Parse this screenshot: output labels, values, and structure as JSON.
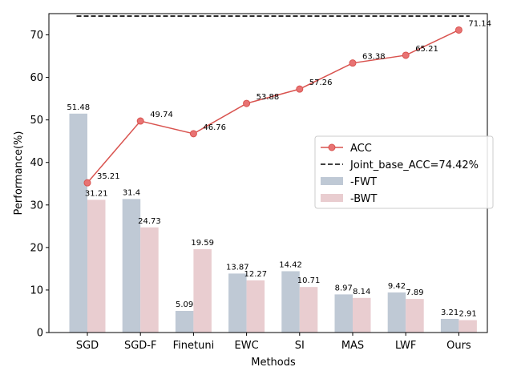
{
  "chart_data": {
    "type": "bar",
    "categories": [
      "SGD",
      "SGD-F",
      "Finetuni",
      "EWC",
      "SI",
      "MAS",
      "LWF",
      "Ours"
    ],
    "xlabel": "Methods",
    "ylabel": "Performance(%)",
    "ylim": [
      0,
      75
    ],
    "yticks": [
      0,
      10,
      20,
      30,
      40,
      50,
      60,
      70
    ],
    "grid": false,
    "legend_position": "center-right",
    "series": [
      {
        "name": "-FWT",
        "type": "bar",
        "color": "#bfc9d5",
        "values": [
          51.48,
          31.4,
          5.09,
          13.87,
          14.42,
          8.97,
          9.42,
          3.21
        ],
        "labels": [
          "51.48",
          "31.4",
          "5.09",
          "13.87",
          "14.42",
          "8.97",
          "9.42",
          "3.21"
        ]
      },
      {
        "name": "-BWT",
        "type": "bar",
        "color": "#e9cdd0",
        "values": [
          31.21,
          24.73,
          19.59,
          12.27,
          10.71,
          8.14,
          7.89,
          2.91
        ],
        "labels": [
          "31.21",
          "24.73",
          "19.59",
          "12.27",
          "10.71",
          "8.14",
          "7.89",
          "2.91"
        ]
      },
      {
        "name": "ACC",
        "type": "line",
        "color": "#d9534f",
        "values": [
          35.21,
          49.74,
          46.76,
          53.88,
          57.26,
          63.38,
          65.21,
          71.14
        ],
        "labels": [
          "35.21",
          "49.74",
          "46.76",
          "53.88",
          "57.26",
          "63.38",
          "65.21",
          "71.14"
        ]
      },
      {
        "name": "Joint_base_ACC=74.42%",
        "type": "hline",
        "color": "#000000",
        "value": 74.42
      }
    ]
  }
}
